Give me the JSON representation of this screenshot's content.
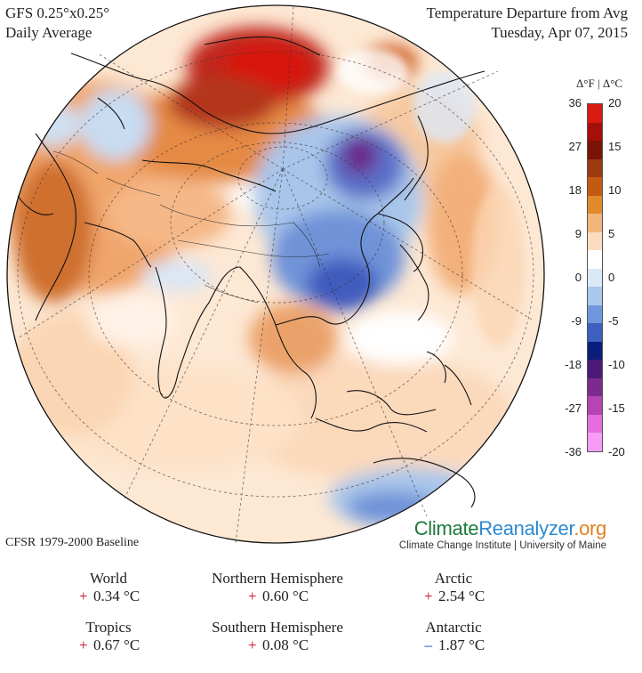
{
  "header": {
    "model": "GFS 0.25°x0.25°",
    "period": "Daily Average",
    "title": "Temperature Departure from Avg",
    "date": "Tuesday, Apr 07, 2015"
  },
  "legend": {
    "heading": "Δ°F | Δ°C",
    "f_ticks": [
      "36",
      "27",
      "18",
      "9",
      "0",
      "-9",
      "-18",
      "-27",
      "-36"
    ],
    "c_ticks": [
      "20",
      "15",
      "10",
      "5",
      "0",
      "-5",
      "-10",
      "-15",
      "-20"
    ],
    "colors": [
      "#d81b10",
      "#a50f0a",
      "#7a1406",
      "#9b3a0f",
      "#c25a12",
      "#e08a2c",
      "#f2b57a",
      "#fbdcc0",
      "#ffffff",
      "#dbe8f6",
      "#a9c8ec",
      "#6f98dc",
      "#3d5fbd",
      "#0b1d7a",
      "#4b1a78",
      "#7d2a8f",
      "#b545b3",
      "#e46ee0",
      "#f79bf5"
    ]
  },
  "baseline": "CFSR 1979-2000 Baseline",
  "brand": {
    "part1": "Climate",
    "part2": "Reanalyzer",
    "part3": ".org",
    "sub": "Climate Change Institute | University of Maine"
  },
  "stats": {
    "world": {
      "label": "World",
      "sign": "+",
      "value": "0.34 °C"
    },
    "nh": {
      "label": "Northern Hemisphere",
      "sign": "+",
      "value": "0.60 °C"
    },
    "arctic": {
      "label": "Arctic",
      "sign": "+",
      "value": "2.54 °C"
    },
    "tropics": {
      "label": "Tropics",
      "sign": "+",
      "value": "0.67 °C"
    },
    "sh": {
      "label": "Southern Hemisphere",
      "sign": "+",
      "value": "0.08 °C"
    },
    "antarctic": {
      "label": "Antarctic",
      "sign": "–",
      "value": "1.87 °C"
    }
  },
  "colors": {
    "positive_sign": "#d0021b",
    "negative_sign": "#1133cc"
  }
}
